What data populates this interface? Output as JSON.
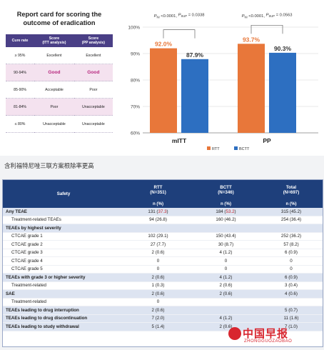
{
  "report_card": {
    "title_line1": "Report card for scoring the",
    "title_line2": "outcome of eradication",
    "headers": [
      [
        "Cure rate"
      ],
      [
        "Score",
        "(ITT analysis)"
      ],
      [
        "Score",
        "(PP analysis)"
      ]
    ],
    "rows": [
      {
        "rate": "≥ 95%",
        "itt": "Excellent",
        "pp": "Excellent",
        "pink": false,
        "good": false
      },
      {
        "rate": "90-94%",
        "itt": "Good",
        "pp": "Good",
        "pink": true,
        "good": true
      },
      {
        "rate": "85-90%",
        "itt": "Acceptable",
        "pp": "Poor",
        "pink": false,
        "good": false
      },
      {
        "rate": "81-84%",
        "itt": "Poor",
        "pp": "Unacceptable",
        "pink": true,
        "good": false
      },
      {
        "rate": "≤ 80%",
        "itt": "Unacceptable",
        "pp": "Unacceptable",
        "pink": false,
        "good": false
      }
    ]
  },
  "chart_data": {
    "type": "bar",
    "categories": [
      "mITT",
      "PP"
    ],
    "series": [
      {
        "name": "RTT",
        "values": [
          92.0,
          93.7
        ],
        "labels": [
          "92.0%",
          "93.7%"
        ],
        "color": "#e8773a"
      },
      {
        "name": "BCTT",
        "values": [
          87.9,
          90.3
        ],
        "labels": [
          "87.9%",
          "90.3%"
        ],
        "color": "#2d6fc1"
      }
    ],
    "p_values": [
      {
        "main": "P",
        "sub1": "NI",
        "v1": " <0.0001, ",
        "sub2": "SUP",
        "v2": " = 0.0338"
      },
      {
        "main": "P",
        "sub1": "NI",
        "v1": " <0.0001, ",
        "sub2": "SUP",
        "v2": " = 0.0563"
      }
    ],
    "yticks": [
      "60%",
      "70%",
      "80%",
      "90%",
      "100%"
    ],
    "ytick_values": [
      60,
      70,
      80,
      90,
      100
    ],
    "ylim": [
      60,
      100
    ]
  },
  "caption": "含利福特尼唑三联方案根除率更高",
  "safety": {
    "header": {
      "col0": "Safety",
      "col1_a": "RTT",
      "col1_b": "(N=351)",
      "col2_a": "BCTT",
      "col2_b": "(N=346)",
      "col3_a": "Total",
      "col3_b": "(N=697)",
      "unit": "n (%)"
    },
    "rows": [
      {
        "label": "Any TEAE",
        "c1": "131 (",
        "c1r": "37.3",
        "c1e": ")",
        "c2": "184 (",
        "c2r": "53.2",
        "c2e": ")",
        "c3": "315 (45.2)",
        "sec": true,
        "ind": false
      },
      {
        "label": "Treatment-related TEAEs",
        "c1": "94 (26.8)",
        "c1r": "",
        "c1e": "",
        "c2": "160 (46.2)",
        "c2r": "",
        "c2e": "",
        "c3": "254 (36.4)",
        "sec": false,
        "ind": true
      },
      {
        "label": "TEAEs by highest severity",
        "c1": "",
        "c1r": "",
        "c1e": "",
        "c2": "",
        "c2r": "",
        "c2e": "",
        "c3": "",
        "sec": true,
        "ind": false
      },
      {
        "label": "CTCAE grade 1",
        "c1": "102 (29.1)",
        "c1r": "",
        "c1e": "",
        "c2": "150 (43.4)",
        "c2r": "",
        "c2e": "",
        "c3": "252 (36.2)",
        "sec": false,
        "ind": true
      },
      {
        "label": "CTCAE grade 2",
        "c1": "27 (7.7)",
        "c1r": "",
        "c1e": "",
        "c2": "30 (8.7)",
        "c2r": "",
        "c2e": "",
        "c3": "57 (8.2)",
        "sec": false,
        "ind": true
      },
      {
        "label": "CTCAE grade 3",
        "c1": "2 (0.6)",
        "c1r": "",
        "c1e": "",
        "c2": "4 (1.2)",
        "c2r": "",
        "c2e": "",
        "c3": "6 (0.9)",
        "sec": false,
        "ind": true
      },
      {
        "label": "CTCAE grade 4",
        "c1": "0",
        "c1r": "",
        "c1e": "",
        "c2": "0",
        "c2r": "",
        "c2e": "",
        "c3": "0",
        "sec": false,
        "ind": true
      },
      {
        "label": "CTCAE grade 5",
        "c1": "0",
        "c1r": "",
        "c1e": "",
        "c2": "0",
        "c2r": "",
        "c2e": "",
        "c3": "0",
        "sec": false,
        "ind": true
      },
      {
        "label": "TEAEs with grade 3 or higher severity",
        "c1": "2 (0.6)",
        "c1r": "",
        "c1e": "",
        "c2": "4 (1.2)",
        "c2r": "",
        "c2e": "",
        "c3": "6 (0.9)",
        "sec": true,
        "ind": false
      },
      {
        "label": "Treatment-related",
        "c1": "1 (0.3)",
        "c1r": "",
        "c1e": "",
        "c2": "2 (0.6)",
        "c2r": "",
        "c2e": "",
        "c3": "3 (0.4)",
        "sec": false,
        "ind": true
      },
      {
        "label": "SAE",
        "c1": "2 (0.6)",
        "c1r": "",
        "c1e": "",
        "c2": "2 (0.6)",
        "c2r": "",
        "c2e": "",
        "c3": "4 (0.6)",
        "sec": true,
        "ind": false
      },
      {
        "label": "Treatment-related",
        "c1": "0",
        "c1r": "",
        "c1e": "",
        "c2": "",
        "c2r": "",
        "c2e": "",
        "c3": "",
        "sec": false,
        "ind": true
      },
      {
        "label": "TEAEs leading to drug interruption",
        "c1": "2 (0.6)",
        "c1r": "",
        "c1e": "",
        "c2": "",
        "c2r": "",
        "c2e": "",
        "c3": "5 (0.7)",
        "sec": true,
        "ind": false
      },
      {
        "label": "TEAEs leading to drug discontinuation",
        "c1": "7 (2.0)",
        "c1r": "",
        "c1e": "",
        "c2": "4 (1.2)",
        "c2r": "",
        "c2e": "",
        "c3": "11 (1.6)",
        "sec": true,
        "ind": false
      },
      {
        "label": "TEAEs leading to study withdrawal",
        "c1": "5 (1.4)",
        "c1r": "",
        "c1e": "",
        "c2": "2 (0.6)",
        "c2r": "",
        "c2e": "",
        "c3": "7 (1.0)",
        "sec": true,
        "ind": false
      }
    ]
  },
  "watermark": {
    "main": "中国早报",
    "sub": "ZHONGGUOZAOBAO"
  }
}
